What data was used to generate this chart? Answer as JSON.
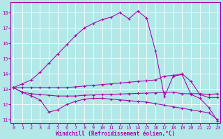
{
  "xlabel": "Windchill (Refroidissement éolien,°C)",
  "xlim": [
    -0.3,
    23.3
  ],
  "ylim": [
    10.8,
    18.7
  ],
  "yticks": [
    11,
    12,
    13,
    14,
    15,
    16,
    17,
    18
  ],
  "xticks": [
    0,
    1,
    2,
    3,
    4,
    5,
    6,
    7,
    8,
    9,
    10,
    11,
    12,
    13,
    14,
    15,
    16,
    17,
    18,
    19,
    20,
    21,
    22,
    23
  ],
  "bg_color": "#b2e8e8",
  "line_color": "#aa00aa",
  "grid_color": "#ffffff",
  "curves": [
    {
      "x": [
        0,
        1,
        2,
        3,
        4,
        5,
        6,
        7,
        8,
        9,
        10,
        11,
        12,
        13,
        14,
        15,
        16,
        17,
        18,
        19,
        20,
        21,
        22,
        23
      ],
      "y": [
        13.1,
        13.35,
        13.6,
        14.1,
        14.7,
        15.3,
        15.9,
        16.5,
        17.0,
        17.3,
        17.55,
        17.7,
        18.0,
        17.6,
        18.1,
        17.65,
        15.5,
        12.5,
        13.85,
        13.95,
        12.65,
        12.4,
        11.8,
        10.9
      ]
    },
    {
      "x": [
        0,
        1,
        2,
        3,
        4,
        5,
        6,
        7,
        8,
        9,
        10,
        11,
        12,
        13,
        14,
        15,
        16,
        17,
        18,
        19,
        20,
        21,
        22,
        23
      ],
      "y": [
        13.1,
        13.1,
        13.1,
        13.1,
        13.1,
        13.1,
        13.1,
        13.15,
        13.2,
        13.25,
        13.3,
        13.35,
        13.4,
        13.45,
        13.5,
        13.55,
        13.6,
        13.85,
        13.9,
        14.0,
        13.5,
        12.65,
        12.45,
        12.45
      ]
    },
    {
      "x": [
        0,
        1,
        2,
        3,
        4,
        5,
        6,
        7,
        8,
        9,
        10,
        11,
        12,
        13,
        14,
        15,
        16,
        17,
        18,
        19,
        20,
        21,
        22,
        23
      ],
      "y": [
        13.1,
        12.8,
        12.7,
        12.65,
        12.6,
        12.55,
        12.55,
        12.55,
        12.6,
        12.62,
        12.64,
        12.66,
        12.68,
        12.7,
        12.72,
        12.74,
        12.76,
        12.78,
        12.8,
        12.7,
        12.7,
        12.7,
        12.65,
        12.7
      ]
    },
    {
      "x": [
        0,
        1,
        2,
        3,
        4,
        5,
        6,
        7,
        8,
        9,
        10,
        11,
        12,
        13,
        14,
        15,
        16,
        17,
        18,
        19,
        20,
        21,
        22,
        23
      ],
      "y": [
        13.1,
        12.8,
        12.55,
        12.3,
        11.5,
        11.65,
        12.0,
        12.2,
        12.35,
        12.4,
        12.4,
        12.35,
        12.3,
        12.25,
        12.2,
        12.15,
        12.05,
        11.95,
        11.85,
        11.75,
        11.65,
        11.55,
        11.45,
        11.0
      ]
    }
  ]
}
